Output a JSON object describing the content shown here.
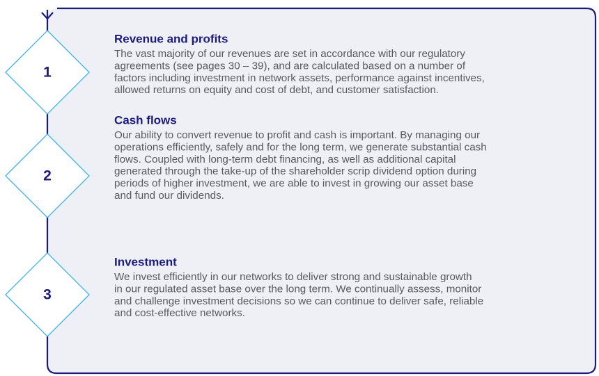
{
  "items": [
    {
      "number": "1",
      "title": "Revenue and profits",
      "lines": [
        "The vast majority of our revenues are set in accordance with our regulatory",
        "agreements (see pages 30 – 39), and are calculated based on a number of",
        "factors including investment in network assets, performance against incentives,",
        "allowed returns on equity and cost of debt, and customer satisfaction."
      ]
    },
    {
      "number": "2",
      "title": "Cash flows",
      "lines": [
        "Our ability to convert revenue to profit and cash is important. By managing our",
        "operations efficiently, safely and for the long term, we generate substantial cash",
        "flows. Coupled with long-term debt financing, as well as additional capital",
        "generated through the take-up of the shareholder scrip dividend option during",
        "periods of higher investment, we are able to invest in growing our asset base",
        "and fund our dividends."
      ]
    },
    {
      "number": "3",
      "title": "Investment",
      "lines": [
        "We invest efficiently in our networks to deliver strong and sustainable growth",
        "in our regulated asset base over the long term. We continually assess, monitor",
        "and challenge investment decisions so we can continue to deliver safe, reliable",
        "and cost-effective networks."
      ]
    }
  ]
}
